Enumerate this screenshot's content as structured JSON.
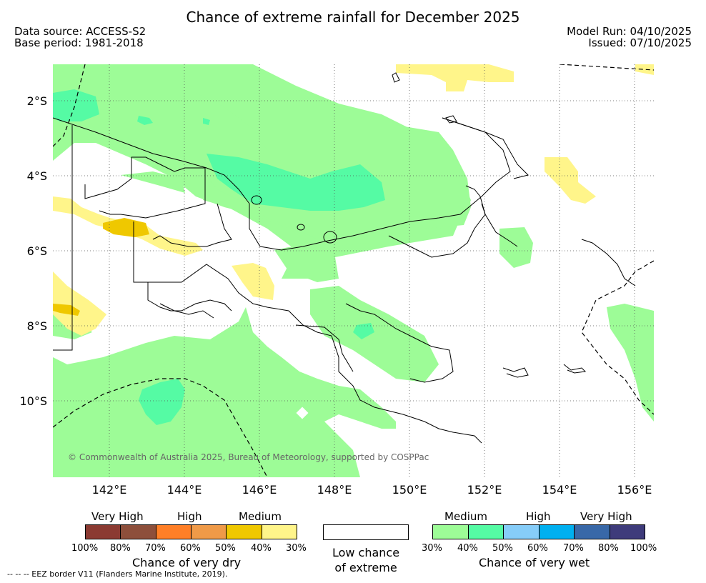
{
  "title": "Chance of extreme rainfall for December 2025",
  "data_source": "Data source: ACCESS-S2",
  "base_period": "Base period: 1981-2018",
  "model_run": "Model Run: 04/10/2025",
  "issued": "Issued: 07/10/2025",
  "lat_labels": [
    "2°S",
    "4°S",
    "6°S",
    "8°S",
    "10°S"
  ],
  "lon_labels": [
    "142°E",
    "144°E",
    "146°E",
    "148°E",
    "150°E",
    "152°E",
    "154°E",
    "156°E"
  ],
  "copyright": "© Commonwealth of Australia 2025, Bureau of Meteorology, supported by COSPPac",
  "eez_note": "--  --  -- EEZ border V11 (Flanders Marine Institute, 2019).",
  "legend": {
    "dry": {
      "levels": [
        "Very High",
        "High",
        "Medium"
      ],
      "colors": [
        "#8b3a32",
        "#8d4f3b",
        "#ff7f27",
        "#ef9a48",
        "#efc800",
        "#fff58a"
      ],
      "ticks": [
        "100%",
        "80%",
        "70%",
        "60%",
        "50%",
        "40%",
        "30%"
      ],
      "caption": "Chance of very dry"
    },
    "low": {
      "caption_line1": "Low chance",
      "caption_line2": "of extreme"
    },
    "wet": {
      "levels": [
        "Medium",
        "High",
        "Very High"
      ],
      "colors": [
        "#9dfc97",
        "#55fba4",
        "#86cdf9",
        "#00b0f0",
        "#3868a8",
        "#3e3b7b"
      ],
      "ticks": [
        "30%",
        "40%",
        "50%",
        "60%",
        "70%",
        "80%",
        "100%"
      ],
      "caption": "Chance of very wet"
    }
  }
}
